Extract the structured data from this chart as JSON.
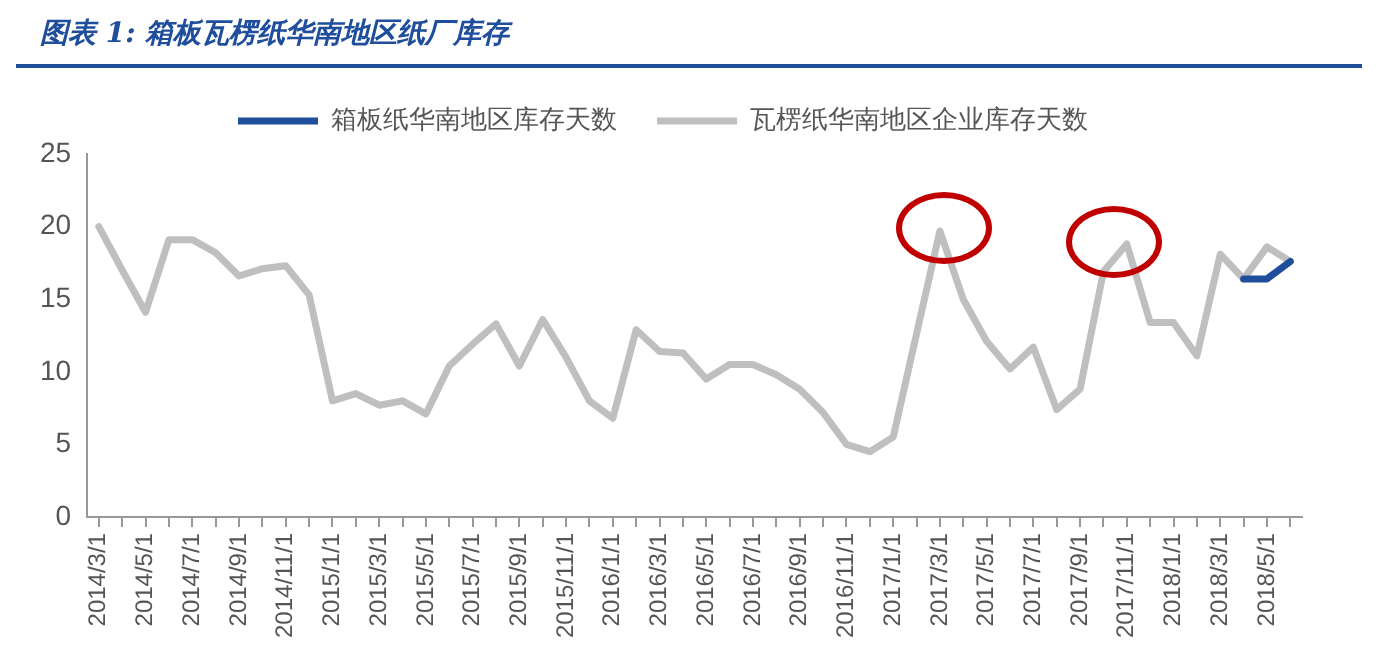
{
  "chart_data": {
    "type": "line",
    "title": "图表 1:  箱板瓦楞纸华南地区纸厂库存",
    "categories": [
      "2014/3/1",
      null,
      "2014/5/1",
      null,
      "2014/7/1",
      null,
      "2014/9/1",
      null,
      "2014/11/1",
      null,
      "2015/1/1",
      null,
      "2015/3/1",
      null,
      "2015/5/1",
      null,
      "2015/7/1",
      null,
      "2015/9/1",
      null,
      "2015/11/1",
      null,
      "2016/1/1",
      null,
      "2016/3/1",
      null,
      "2016/5/1",
      null,
      "2016/7/1",
      null,
      "2016/9/1",
      null,
      "2016/11/1",
      null,
      "2017/1/1",
      null,
      "2017/3/1",
      null,
      "2017/5/1",
      null,
      "2017/7/1",
      null,
      "2017/9/1",
      null,
      "2017/11/1",
      null,
      "2018/1/1",
      null,
      "2018/3/1",
      null,
      "2018/5/1",
      null
    ],
    "series": [
      {
        "name": "箱板纸华南地区库存天数",
        "color": "#1f4e9c",
        "values": [
          null,
          null,
          null,
          null,
          null,
          null,
          null,
          null,
          null,
          null,
          null,
          null,
          null,
          null,
          null,
          null,
          null,
          null,
          null,
          null,
          null,
          null,
          null,
          null,
          null,
          null,
          null,
          null,
          null,
          null,
          null,
          null,
          null,
          null,
          null,
          null,
          null,
          null,
          null,
          null,
          null,
          null,
          null,
          null,
          null,
          null,
          null,
          null,
          null,
          16.4,
          16.4,
          17.6
        ]
      },
      {
        "name": "瓦楞纸华南地区企业库存天数",
        "color": "#bfbfbf",
        "values": [
          20.0,
          17.0,
          14.1,
          19.1,
          19.1,
          18.2,
          16.6,
          17.1,
          17.3,
          15.3,
          8.0,
          8.5,
          7.7,
          8.0,
          7.1,
          10.4,
          11.9,
          13.3,
          10.4,
          13.6,
          11.0,
          8.0,
          6.8,
          12.9,
          11.4,
          11.3,
          9.5,
          10.5,
          10.5,
          9.8,
          8.8,
          7.2,
          5.0,
          4.5,
          5.5,
          12.6,
          19.7,
          15.0,
          12.1,
          10.2,
          11.7,
          7.4,
          8.8,
          16.9,
          18.8,
          13.4,
          13.4,
          11.1,
          18.1,
          16.4,
          18.6,
          17.6
        ]
      }
    ],
    "ylim": [
      0,
      25
    ],
    "yticks": [
      0,
      5,
      10,
      15,
      20,
      25
    ],
    "grid": false,
    "legend": "top",
    "marker": "none",
    "line_style": "solid"
  }
}
